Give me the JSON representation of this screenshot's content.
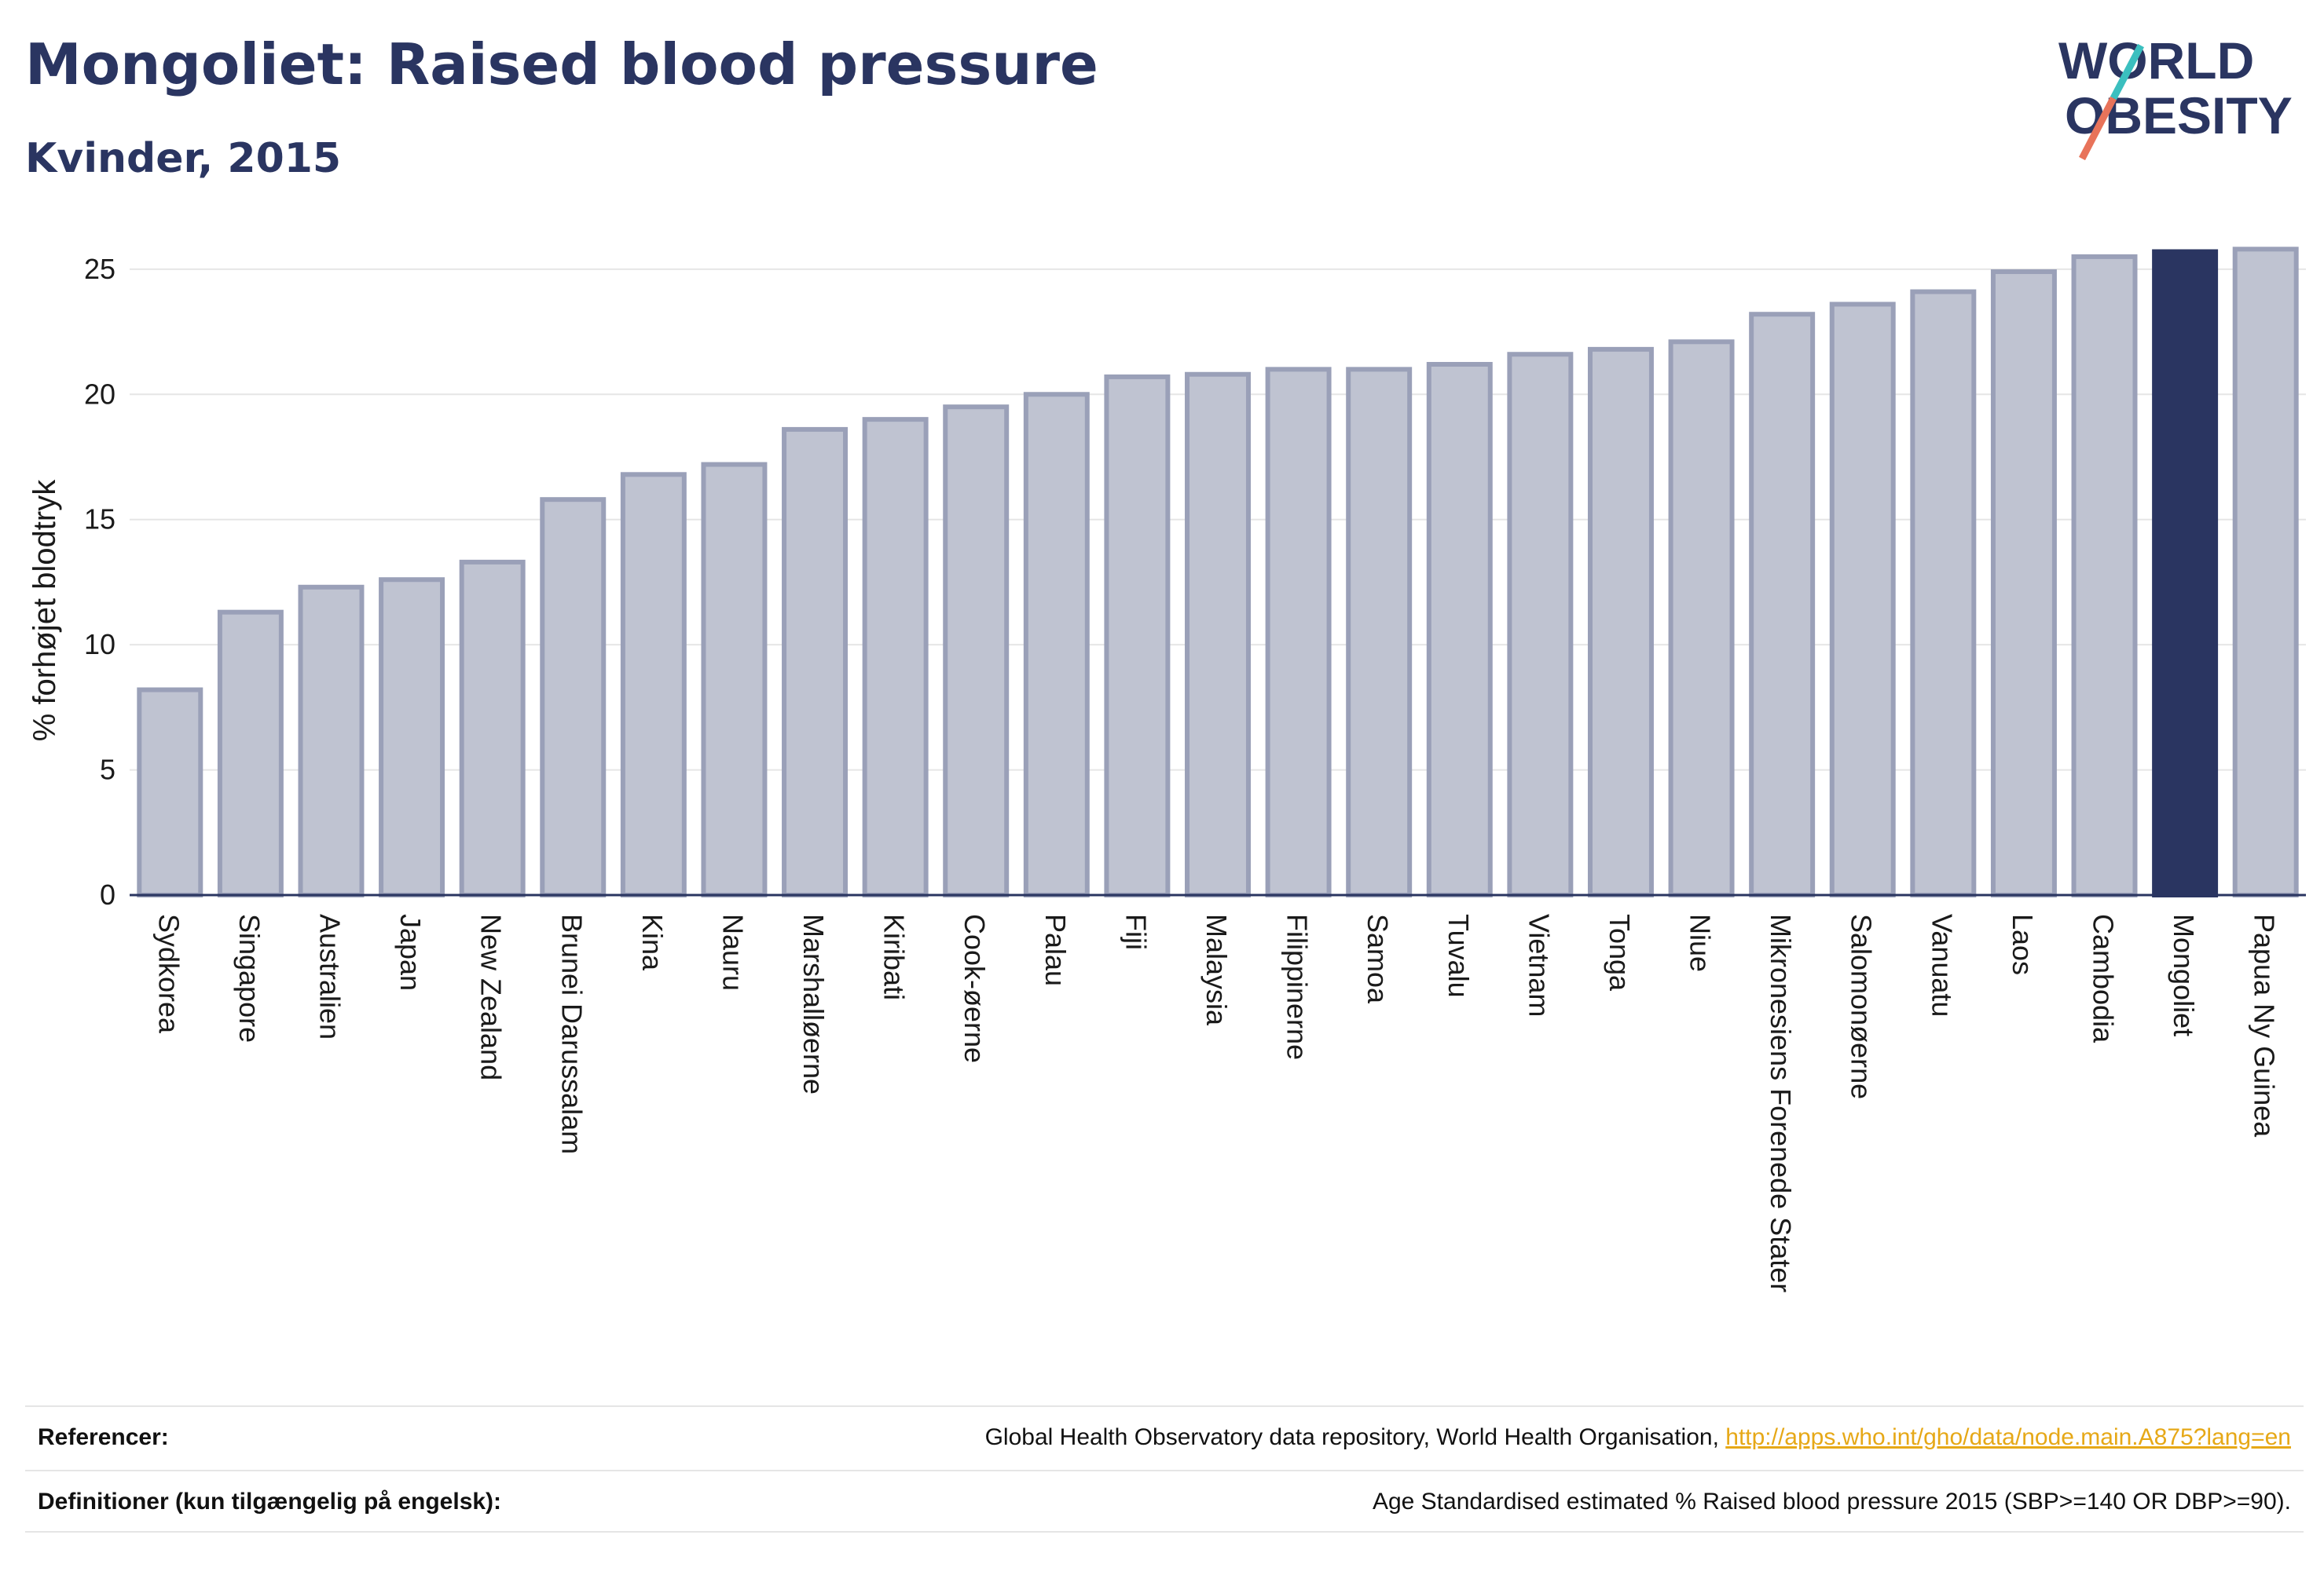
{
  "header": {
    "title": "Mongoliet: Raised blood pressure",
    "subtitle": "Kvinder, 2015"
  },
  "logo": {
    "line1": "WORLD",
    "line2": "OBESITY",
    "colors": {
      "text": "#2a3561",
      "slash_teal": "#3bbfbf",
      "slash_red": "#e8735a"
    }
  },
  "chart_data": {
    "type": "bar",
    "title": "Mongoliet: Raised blood pressure",
    "subtitle": "Kvinder, 2015",
    "ylabel": "% forhøjet blodtryk",
    "xlabel": "",
    "ylim": [
      0,
      26.5
    ],
    "yticks": [
      0,
      5,
      10,
      15,
      20,
      25
    ],
    "grid": true,
    "highlight": "Mongoliet",
    "colors": {
      "bar": "#bfc3d1",
      "bar_stroke": "#9aa0b8",
      "highlight": "#2a3561",
      "grid": "#e6e6e6",
      "axis": "#2a3561"
    },
    "categories": [
      "Sydkorea",
      "Singapore",
      "Australien",
      "Japan",
      "New Zealand",
      "Brunei Darussalam",
      "Kina",
      "Nauru",
      "Marshalløerne",
      "Kiribati",
      "Cook-øerne",
      "Palau",
      "Fiji",
      "Malaysia",
      "Filippinerne",
      "Samoa",
      "Tuvalu",
      "Vietnam",
      "Tonga",
      "Niue",
      "Mikronesiens Forenede Stater",
      "Salomonøerne",
      "Vanuatu",
      "Laos",
      "Cambodia",
      "Mongoliet",
      "Papua Ny Guinea"
    ],
    "values": [
      8.2,
      11.3,
      12.3,
      12.6,
      13.3,
      15.8,
      16.8,
      17.2,
      18.6,
      19.0,
      19.5,
      20.0,
      20.7,
      20.8,
      21.0,
      21.0,
      21.2,
      21.6,
      21.8,
      22.1,
      23.2,
      23.6,
      24.1,
      24.9,
      25.5,
      25.7,
      25.8
    ]
  },
  "footer": {
    "references_label": "Referencer:",
    "references_text": "Global Health Observatory data repository, World Health Organisation, ",
    "references_link": "http://apps.who.int/gho/data/node.main.A875?lang=en",
    "definitions_label": "Definitioner (kun tilgængelig på engelsk):",
    "definitions_text": "Age Standardised estimated % Raised blood pressure 2015 (SBP>=140 OR DBP>=90)."
  }
}
